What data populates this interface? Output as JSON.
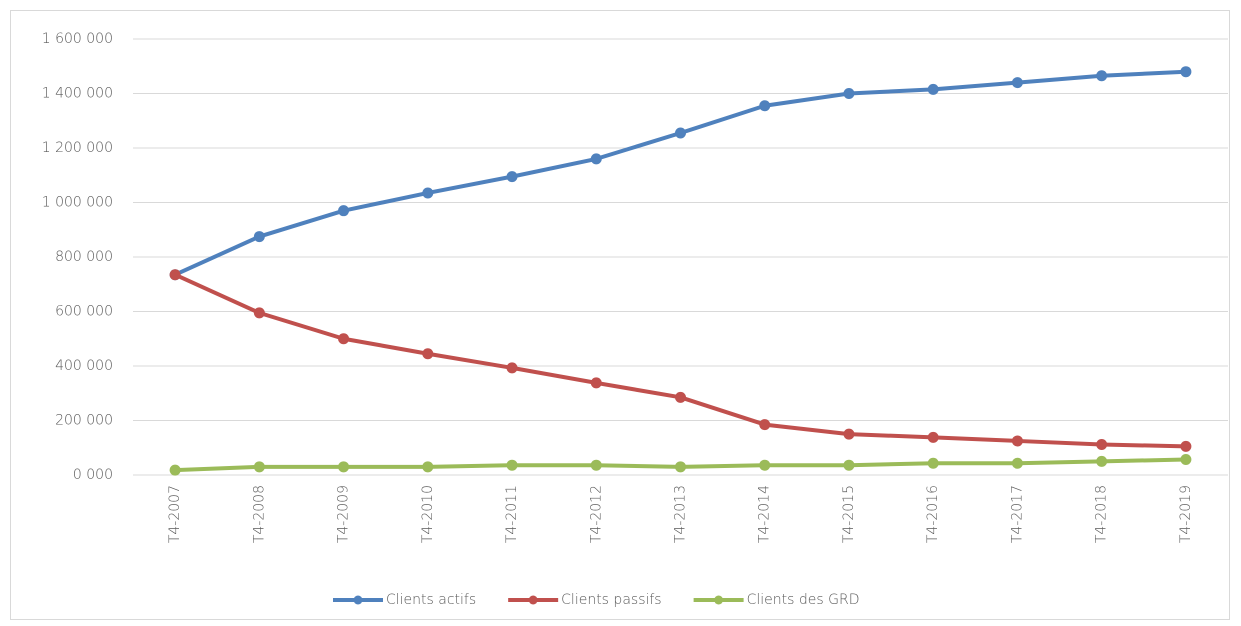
{
  "chart_data": {
    "type": "line",
    "categories": [
      "T4-2007",
      "T4-2008",
      "T4-2009",
      "T4-2010",
      "T4-2011",
      "T4-2012",
      "T4-2013",
      "T4-2014",
      "T4-2015",
      "T4-2016",
      "T4-2017",
      "T4-2018",
      "T4-2019"
    ],
    "series": [
      {
        "name": "Clients actifs",
        "color": "#4f81bd",
        "values": [
          735000,
          875000,
          970000,
          1035000,
          1095000,
          1160000,
          1255000,
          1355000,
          1400000,
          1415000,
          1440000,
          1465000,
          1480000
        ]
      },
      {
        "name": "Clients passifs",
        "color": "#c0504d",
        "values": [
          735000,
          595000,
          500000,
          445000,
          393000,
          338000,
          285000,
          185000,
          150000,
          138000,
          125000,
          112000,
          105000
        ]
      },
      {
        "name": "Clients des GRD",
        "color": "#9bbb59",
        "values": [
          18000,
          30000,
          30000,
          30000,
          36000,
          36000,
          30000,
          36000,
          36000,
          43000,
          43000,
          50000,
          57000
        ]
      }
    ],
    "ylim": [
      0,
      1600000
    ],
    "yticks": [
      {
        "value": 0,
        "label": "0 000"
      },
      {
        "value": 200000,
        "label": "200 000"
      },
      {
        "value": 400000,
        "label": "400 000"
      },
      {
        "value": 600000,
        "label": "600 000"
      },
      {
        "value": 800000,
        "label": "800 000"
      },
      {
        "value": 1000000,
        "label": "1 000 000"
      },
      {
        "value": 1200000,
        "label": "1 200 000"
      },
      {
        "value": 1400000,
        "label": "1 400 000"
      },
      {
        "value": 1600000,
        "label": "1 600 000"
      }
    ],
    "grid": true,
    "legend": "bottom"
  }
}
